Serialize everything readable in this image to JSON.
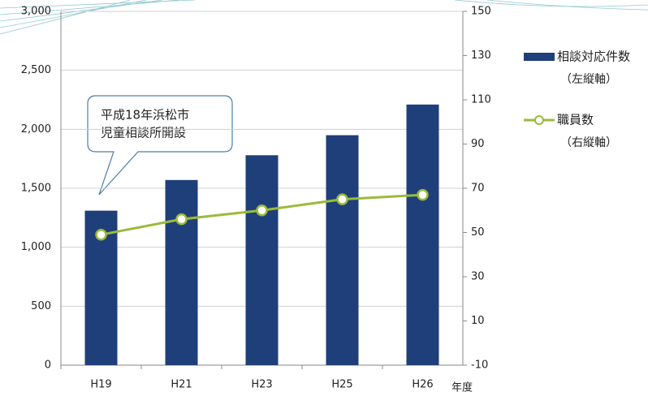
{
  "chart_data": {
    "type": "bar",
    "categories": [
      "H19",
      "H21",
      "H23",
      "H25",
      "H26"
    ],
    "x_label": "年度",
    "series": [
      {
        "name": "相談対応件数",
        "note": "（左縦軸）",
        "type": "bar",
        "color": "#1f3f7a",
        "values": [
          1310,
          1570,
          1780,
          1950,
          2210
        ]
      },
      {
        "name": "職員数",
        "note": "（右縦軸）",
        "type": "line",
        "axis": "y2",
        "color": "#9bbb3c",
        "values": [
          49,
          56,
          60,
          65,
          67
        ]
      }
    ],
    "annotation": [
      "平成18年浜松市",
      "児童相談所開設"
    ],
    "ylim": [
      0,
      3000
    ],
    "yticks": [
      0,
      500,
      {
        "value": 1000,
        "label": "1,000"
      },
      {
        "value": 1500,
        "label": "1,500"
      },
      {
        "value": 2000,
        "label": "2,000"
      },
      {
        "value": 2500,
        "label": "2,500"
      },
      {
        "value": 3000,
        "label": "3,000"
      }
    ],
    "y2lim": [
      -10,
      150
    ],
    "y2ticks": [
      -10,
      10,
      30,
      50,
      70,
      90,
      110,
      130,
      150
    ],
    "grid": true
  }
}
